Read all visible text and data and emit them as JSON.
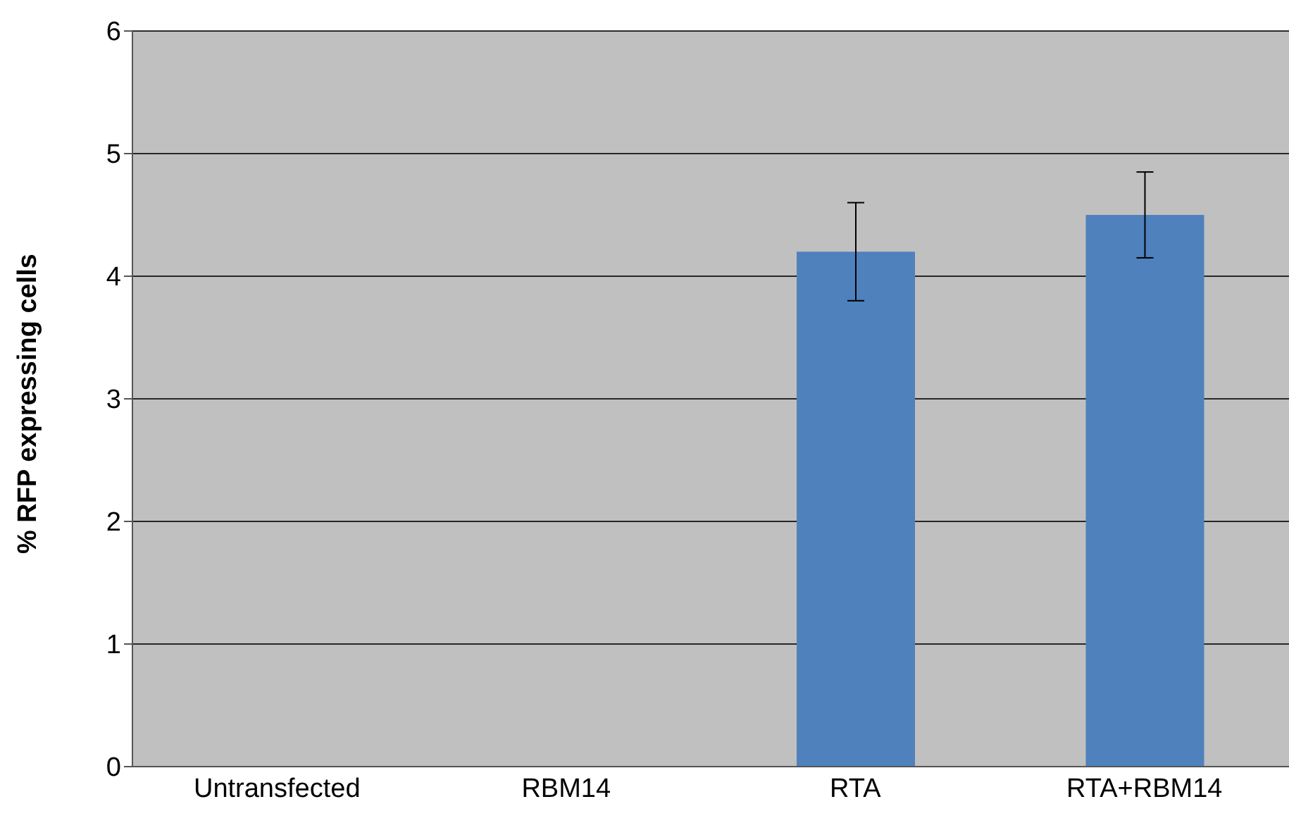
{
  "chart_data": {
    "type": "bar",
    "ylabel": "% RFP expressing cells",
    "categories": [
      "Untransfected",
      "RBM14",
      "RTA",
      "RTA+RBM14"
    ],
    "values": [
      0,
      0,
      4.2,
      4.5
    ],
    "errors": [
      null,
      null,
      0.4,
      0.35
    ],
    "color": "#4f81bd",
    "ylim": [
      0,
      6
    ],
    "yticks": [
      0,
      1,
      2,
      3,
      4,
      5,
      6
    ],
    "grid": "y"
  }
}
